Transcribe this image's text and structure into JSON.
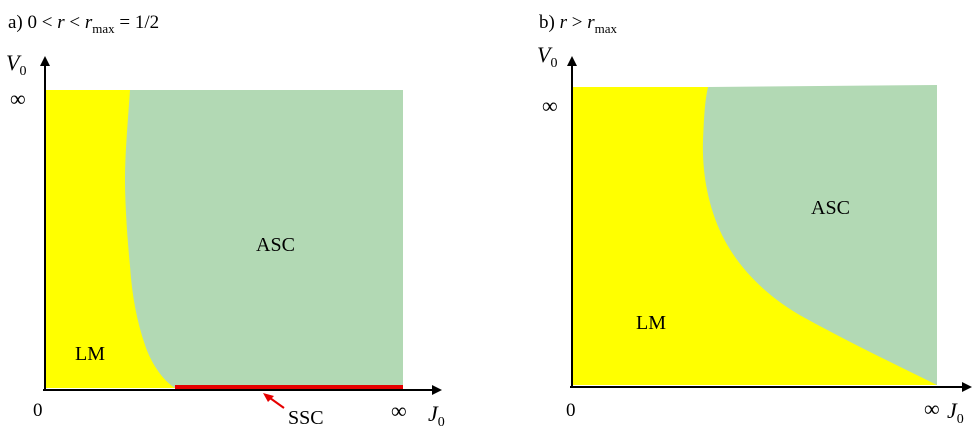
{
  "colors": {
    "lm": "#ffff00",
    "asc": "#b2d9b4",
    "ssc": "#e60000",
    "arrow": "#e60000",
    "axis": "#000000",
    "text": "#000000"
  },
  "panels": [
    {
      "caption": {
        "prefix": "a) 0 < ",
        "var": "r",
        "lt": " < ",
        "var2": "r",
        "sub": "max",
        "suffix": " = 1/2"
      },
      "y_axis": {
        "symbol": "V",
        "sub": "0",
        "infinity": "∞"
      },
      "x_axis": {
        "symbol": "J",
        "sub": "0",
        "zero": "0",
        "infinity": "∞"
      },
      "regions": {
        "lm": "LM",
        "asc": "ASC"
      },
      "ssc_label": "SSC"
    },
    {
      "caption": {
        "prefix": "b) ",
        "var": "r",
        "gt": " > ",
        "var2": "r",
        "sub": "max"
      },
      "y_axis": {
        "symbol": "V",
        "sub": "0",
        "infinity": "∞"
      },
      "x_axis": {
        "symbol": "J",
        "sub": "0",
        "zero": "0",
        "infinity": "∞"
      },
      "regions": {
        "lm": "LM",
        "asc": "ASC"
      }
    }
  ]
}
